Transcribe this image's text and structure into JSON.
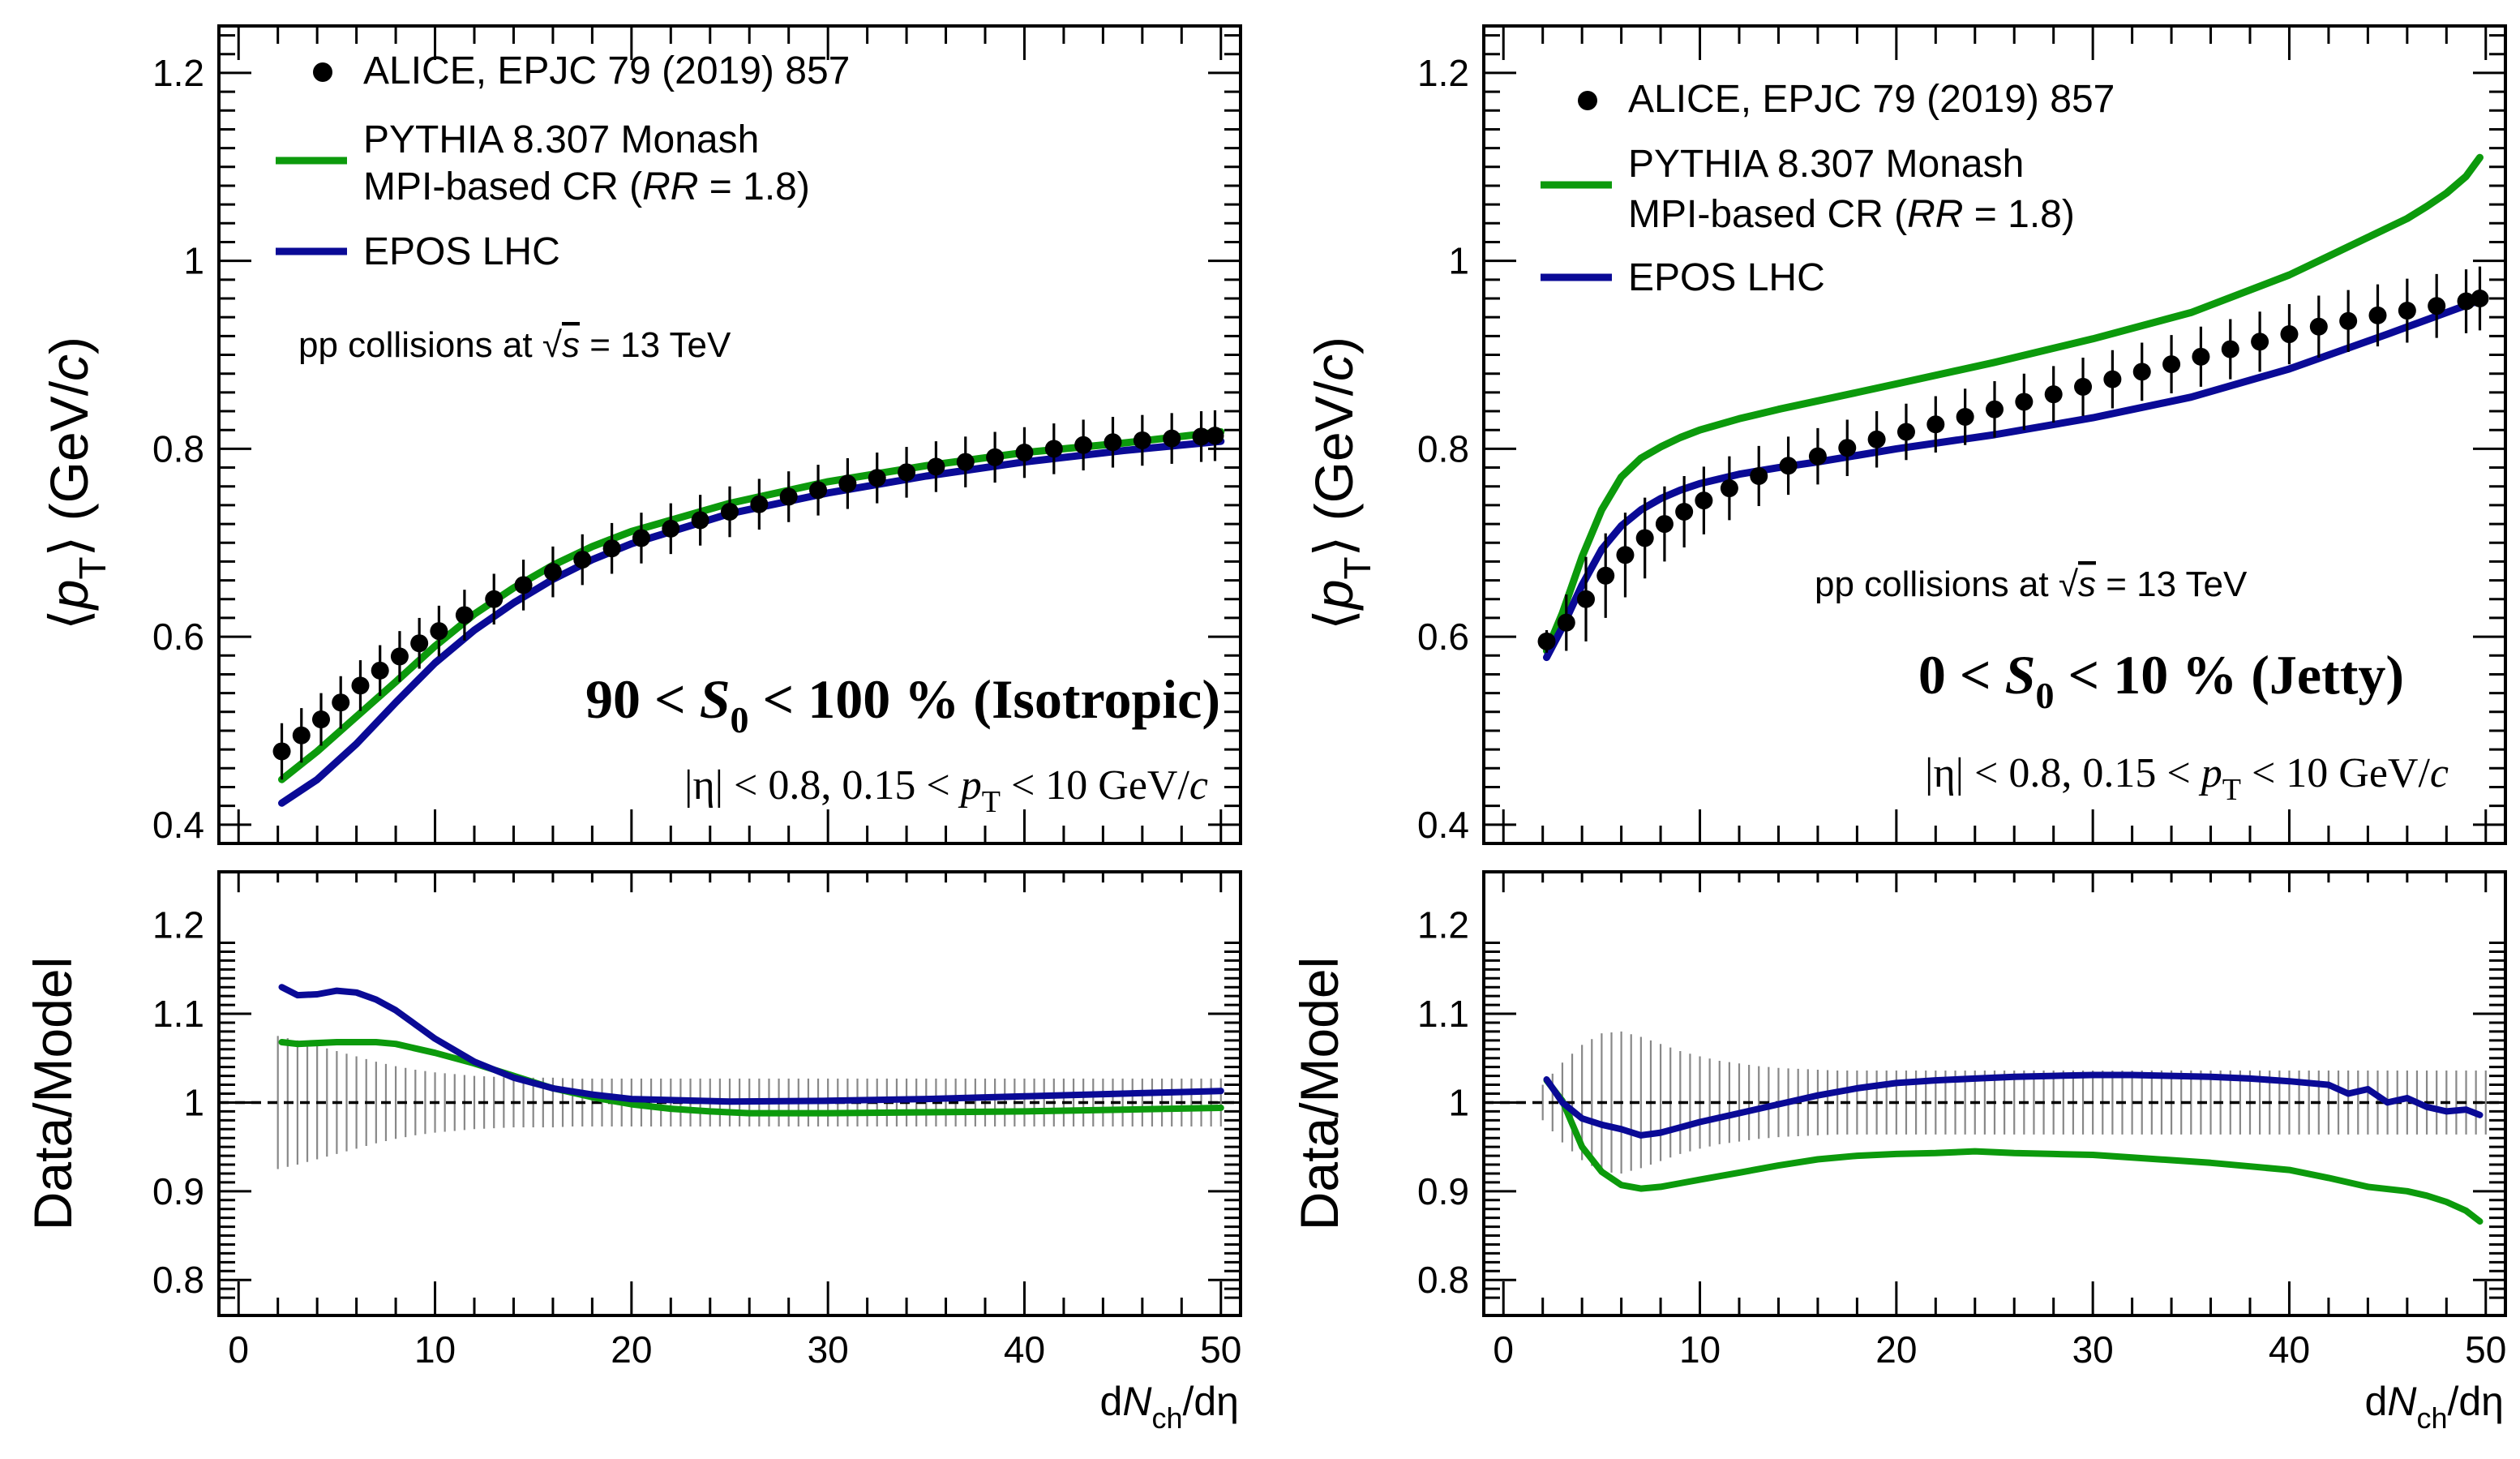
{
  "chart_data": [
    {
      "type": "line",
      "panel": "left",
      "ylabel": "⟨p_T⟩ (GeV/c)",
      "ratio_ylabel": "Data/Model",
      "xlabel": "dN_ch/dη",
      "xlim": [
        -1,
        51
      ],
      "ylim": [
        0.38,
        1.25
      ],
      "ratio_ylim": [
        0.76,
        1.26
      ],
      "x_ticks": [
        "0",
        "10",
        "20",
        "30",
        "40",
        "50"
      ],
      "y_ticks": [
        "0.4",
        "0.6",
        "0.8",
        "1",
        "1.2"
      ],
      "ratio_y_ticks": [
        "0.8",
        "0.9",
        "1",
        "1.1",
        "1.2"
      ],
      "legend": {
        "position": "top-left",
        "entries": [
          {
            "label": "ALICE, EPJC 79 (2019) 857",
            "marker": "circle"
          },
          {
            "label_line1": "PYTHIA 8.307 Monash",
            "label_line2_pre": "MPI-based CR (",
            "label_line2_ital": "RR",
            "label_line2_post": " = 1.8)",
            "marker": "line"
          },
          {
            "label": "EPOS LHC",
            "marker": "line"
          }
        ]
      },
      "collision_text": {
        "pre": "pp collisions at ",
        "sqrt": "√",
        "s": "s",
        "post": " = 13 TeV"
      },
      "selection_text": {
        "pre": "90 < ",
        "var": "S",
        "sub": "0",
        "post": " < 100 % (Isotropic)"
      },
      "kinematics_text": {
        "pre": "|η| < 0.8, 0.15 < ",
        "var": "p",
        "sub": "T",
        "mid": " < 10 GeV/",
        "unit": "c"
      },
      "data": {
        "name": "ALICE",
        "x": [
          2.2,
          3.2,
          4.2,
          5.2,
          6.2,
          7.2,
          8.2,
          9.2,
          10.2,
          11.5,
          13,
          14.5,
          16,
          17.5,
          19,
          20.5,
          22,
          23.5,
          25,
          26.5,
          28,
          29.5,
          31,
          32.5,
          34,
          35.5,
          37,
          38.5,
          40,
          41.5,
          43,
          44.5,
          46,
          47.5,
          49,
          49.7
        ],
        "y": [
          0.478,
          0.495,
          0.512,
          0.53,
          0.548,
          0.564,
          0.579,
          0.593,
          0.606,
          0.623,
          0.64,
          0.655,
          0.669,
          0.682,
          0.694,
          0.705,
          0.715,
          0.724,
          0.733,
          0.741,
          0.749,
          0.756,
          0.763,
          0.769,
          0.775,
          0.781,
          0.786,
          0.791,
          0.796,
          0.8,
          0.804,
          0.807,
          0.809,
          0.811,
          0.813,
          0.814
        ],
        "err": [
          0.03,
          0.029,
          0.028,
          0.028,
          0.027,
          0.027,
          0.027,
          0.027,
          0.027,
          0.027,
          0.027,
          0.027,
          0.027,
          0.027,
          0.027,
          0.027,
          0.027,
          0.027,
          0.027,
          0.027,
          0.027,
          0.027,
          0.027,
          0.027,
          0.027,
          0.027,
          0.027,
          0.027,
          0.027,
          0.027,
          0.027,
          0.027,
          0.027,
          0.027,
          0.027,
          0.027
        ]
      },
      "series": [
        {
          "name": "PYTHIA 8.307 Monash",
          "color": "#0c9a0c",
          "x": [
            2.2,
            4,
            6,
            8,
            10,
            12,
            14,
            16,
            18,
            20,
            25,
            30,
            35,
            40,
            45,
            50
          ],
          "y": [
            0.448,
            0.478,
            0.515,
            0.552,
            0.59,
            0.624,
            0.652,
            0.676,
            0.696,
            0.712,
            0.742,
            0.765,
            0.782,
            0.796,
            0.806,
            0.818
          ]
        },
        {
          "name": "EPOS LHC",
          "color": "#0a0a96",
          "x": [
            2.2,
            4,
            6,
            8,
            10,
            12,
            14,
            16,
            18,
            20,
            25,
            30,
            35,
            40,
            45,
            50
          ],
          "y": [
            0.423,
            0.448,
            0.486,
            0.53,
            0.572,
            0.607,
            0.636,
            0.661,
            0.682,
            0.699,
            0.731,
            0.753,
            0.771,
            0.786,
            0.798,
            0.808
          ]
        }
      ],
      "ratio": {
        "err_x": [
          2,
          3,
          4,
          5,
          6,
          7,
          8,
          9,
          10,
          11,
          12,
          13,
          14,
          15,
          16,
          17,
          18,
          19,
          20,
          21,
          22,
          23,
          24,
          25,
          26,
          27,
          28,
          29,
          30,
          31,
          32,
          33,
          34,
          35,
          36,
          37,
          38,
          39,
          40,
          41,
          42,
          43,
          44,
          45,
          46,
          47,
          48,
          49,
          50
        ],
        "err_half": [
          0.075,
          0.07,
          0.064,
          0.058,
          0.052,
          0.046,
          0.041,
          0.037,
          0.034,
          0.032,
          0.03,
          0.029,
          0.028,
          0.028,
          0.028,
          0.027,
          0.027,
          0.027,
          0.027,
          0.027,
          0.027,
          0.027,
          0.027,
          0.027,
          0.027,
          0.027,
          0.027,
          0.027,
          0.027,
          0.027,
          0.027,
          0.027,
          0.027,
          0.027,
          0.027,
          0.027,
          0.027,
          0.027,
          0.027,
          0.027,
          0.027,
          0.027,
          0.027,
          0.027,
          0.027,
          0.027,
          0.027,
          0.027,
          0.027
        ],
        "series": [
          {
            "name": "PYTHIA 8.307 Monash",
            "color": "#0c9a0c",
            "x": [
              2.2,
              3,
              5,
              7,
              8,
              10,
              12,
              14,
              16,
              18,
              20,
              22,
              24,
              26,
              30,
              35,
              40,
              45,
              50
            ],
            "y": [
              1.068,
              1.066,
              1.068,
              1.068,
              1.066,
              1.056,
              1.044,
              1.03,
              1.016,
              1.006,
              0.998,
              0.993,
              0.99,
              0.988,
              0.988,
              0.989,
              0.99,
              0.992,
              0.994
            ]
          },
          {
            "name": "EPOS LHC",
            "color": "#0a0a96",
            "x": [
              2.2,
              3,
              4,
              5,
              6,
              7,
              8,
              9,
              10,
              12,
              14,
              16,
              18,
              20,
              25,
              30,
              35,
              40,
              45,
              50
            ],
            "y": [
              1.13,
              1.121,
              1.122,
              1.126,
              1.124,
              1.116,
              1.104,
              1.088,
              1.072,
              1.046,
              1.028,
              1.016,
              1.009,
              1.004,
              1.001,
              1.002,
              1.004,
              1.007,
              1.01,
              1.013
            ]
          }
        ]
      }
    },
    {
      "type": "line",
      "panel": "right",
      "ylabel": "⟨p_T⟩ (GeV/c)",
      "ratio_ylabel": "Data/Model",
      "xlabel": "dN_ch/dη",
      "xlim": [
        -1,
        51
      ],
      "ylim": [
        0.38,
        1.25
      ],
      "ratio_ylim": [
        0.76,
        1.26
      ],
      "x_ticks": [
        "0",
        "10",
        "20",
        "30",
        "40",
        "50"
      ],
      "y_ticks": [
        "0.4",
        "0.6",
        "0.8",
        "1",
        "1.2"
      ],
      "ratio_y_ticks": [
        "0.8",
        "0.9",
        "1",
        "1.1",
        "1.2"
      ],
      "legend": {
        "position": "top-left",
        "entries": [
          {
            "label": "ALICE, EPJC 79 (2019) 857",
            "marker": "circle"
          },
          {
            "label_line1": "PYTHIA 8.307 Monash",
            "label_line2_pre": "MPI-based CR (",
            "label_line2_ital": "RR",
            "label_line2_post": " = 1.8)",
            "marker": "line"
          },
          {
            "label": "EPOS LHC",
            "marker": "line"
          }
        ]
      },
      "collision_text": {
        "pre": "pp collisions at ",
        "sqrt": "√",
        "s": "s",
        "post": " = 13 TeV"
      },
      "selection_text": {
        "pre": "0 < ",
        "var": "S",
        "sub": "0",
        "post": " < 10 % (Jetty)"
      },
      "kinematics_text": {
        "pre": "|η| < 0.8, 0.15 < ",
        "var": "p",
        "sub": "T",
        "mid": " < 10 GeV/",
        "unit": "c"
      },
      "data": {
        "name": "ALICE",
        "x": [
          2.2,
          3.2,
          4.2,
          5.2,
          6.2,
          7.2,
          8.2,
          9.2,
          10.2,
          11.5,
          13,
          14.5,
          16,
          17.5,
          19,
          20.5,
          22,
          23.5,
          25,
          26.5,
          28,
          29.5,
          31,
          32.5,
          34,
          35.5,
          37,
          38.5,
          40,
          41.5,
          43,
          44.5,
          46,
          47.5,
          49,
          49.7
        ],
        "y": [
          0.595,
          0.615,
          0.64,
          0.665,
          0.687,
          0.705,
          0.72,
          0.733,
          0.745,
          0.758,
          0.771,
          0.782,
          0.792,
          0.801,
          0.81,
          0.818,
          0.826,
          0.834,
          0.842,
          0.85,
          0.858,
          0.866,
          0.874,
          0.882,
          0.89,
          0.898,
          0.906,
          0.914,
          0.922,
          0.93,
          0.936,
          0.942,
          0.947,
          0.952,
          0.957,
          0.96
        ],
        "err": [
          0.012,
          0.03,
          0.045,
          0.045,
          0.045,
          0.043,
          0.04,
          0.038,
          0.036,
          0.034,
          0.032,
          0.031,
          0.03,
          0.03,
          0.03,
          0.03,
          0.03,
          0.03,
          0.03,
          0.03,
          0.03,
          0.031,
          0.031,
          0.031,
          0.031,
          0.032,
          0.032,
          0.032,
          0.032,
          0.033,
          0.033,
          0.033,
          0.034,
          0.034,
          0.034,
          0.034
        ]
      },
      "series": [
        {
          "name": "PYTHIA 8.307 Monash",
          "color": "#0c9a0c",
          "x": [
            2.2,
            3,
            4,
            5,
            6,
            7,
            8,
            9,
            10,
            12,
            14,
            16,
            18,
            20,
            25,
            30,
            35,
            40,
            42,
            44,
            46,
            47,
            48,
            49,
            49.7
          ],
          "y": [
            0.585,
            0.625,
            0.685,
            0.735,
            0.77,
            0.79,
            0.802,
            0.812,
            0.82,
            0.832,
            0.842,
            0.851,
            0.86,
            0.869,
            0.892,
            0.917,
            0.945,
            0.985,
            1.005,
            1.025,
            1.045,
            1.058,
            1.072,
            1.09,
            1.11
          ]
        },
        {
          "name": "EPOS LHC",
          "color": "#0a0a96",
          "x": [
            2.2,
            3,
            4,
            5,
            6,
            7,
            8,
            9,
            10,
            12,
            14,
            16,
            18,
            20,
            25,
            30,
            35,
            40,
            45,
            49.7
          ],
          "y": [
            0.578,
            0.61,
            0.655,
            0.693,
            0.718,
            0.735,
            0.747,
            0.756,
            0.763,
            0.773,
            0.78,
            0.786,
            0.793,
            0.8,
            0.815,
            0.833,
            0.855,
            0.885,
            0.922,
            0.958
          ]
        }
      ],
      "ratio": {
        "err_x": [
          2,
          3,
          4,
          5,
          6,
          7,
          8,
          9,
          10,
          11,
          12,
          13,
          14,
          15,
          16,
          17,
          18,
          19,
          20,
          21,
          22,
          23,
          24,
          25,
          26,
          27,
          28,
          29,
          30,
          31,
          32,
          33,
          34,
          35,
          36,
          37,
          38,
          39,
          40,
          41,
          42,
          43,
          44,
          45,
          46,
          47,
          48,
          49,
          50
        ],
        "err_half": [
          0.02,
          0.045,
          0.065,
          0.078,
          0.08,
          0.074,
          0.066,
          0.058,
          0.052,
          0.047,
          0.044,
          0.041,
          0.039,
          0.038,
          0.037,
          0.036,
          0.036,
          0.036,
          0.036,
          0.036,
          0.036,
          0.036,
          0.036,
          0.036,
          0.036,
          0.036,
          0.036,
          0.036,
          0.036,
          0.036,
          0.036,
          0.036,
          0.036,
          0.036,
          0.036,
          0.036,
          0.036,
          0.036,
          0.036,
          0.036,
          0.036,
          0.036,
          0.036,
          0.036,
          0.036,
          0.036,
          0.036,
          0.036,
          0.036
        ],
        "series": [
          {
            "name": "PYTHIA 8.307 Monash",
            "color": "#0c9a0c",
            "x": [
              2.2,
              3,
              4,
              5,
              6,
              7,
              8,
              9,
              10,
              12,
              14,
              16,
              18,
              20,
              22,
              24,
              26,
              28,
              30,
              32,
              34,
              36,
              38,
              40,
              42,
              44,
              46,
              47,
              48,
              49,
              49.7
            ],
            "y": [
              1.025,
              1.002,
              0.95,
              0.922,
              0.907,
              0.903,
              0.905,
              0.909,
              0.913,
              0.921,
              0.929,
              0.936,
              0.94,
              0.942,
              0.943,
              0.945,
              0.943,
              0.942,
              0.941,
              0.938,
              0.935,
              0.932,
              0.928,
              0.924,
              0.915,
              0.905,
              0.9,
              0.895,
              0.888,
              0.878,
              0.866
            ]
          },
          {
            "name": "EPOS LHC",
            "color": "#0a0a96",
            "x": [
              2.2,
              3,
              4,
              5,
              6,
              7,
              8,
              9,
              10,
              12,
              14,
              16,
              18,
              20,
              22,
              24,
              26,
              28,
              30,
              32,
              34,
              36,
              38,
              40,
              42,
              43,
              44,
              45,
              46,
              47,
              48,
              49,
              49.7
            ],
            "y": [
              1.026,
              1.0,
              0.982,
              0.975,
              0.97,
              0.963,
              0.966,
              0.972,
              0.978,
              0.988,
              0.998,
              1.008,
              1.016,
              1.022,
              1.025,
              1.027,
              1.029,
              1.03,
              1.031,
              1.031,
              1.03,
              1.029,
              1.027,
              1.024,
              1.02,
              1.01,
              1.015,
              1.0,
              1.005,
              0.995,
              0.99,
              0.992,
              0.986
            ]
          }
        ]
      }
    }
  ]
}
